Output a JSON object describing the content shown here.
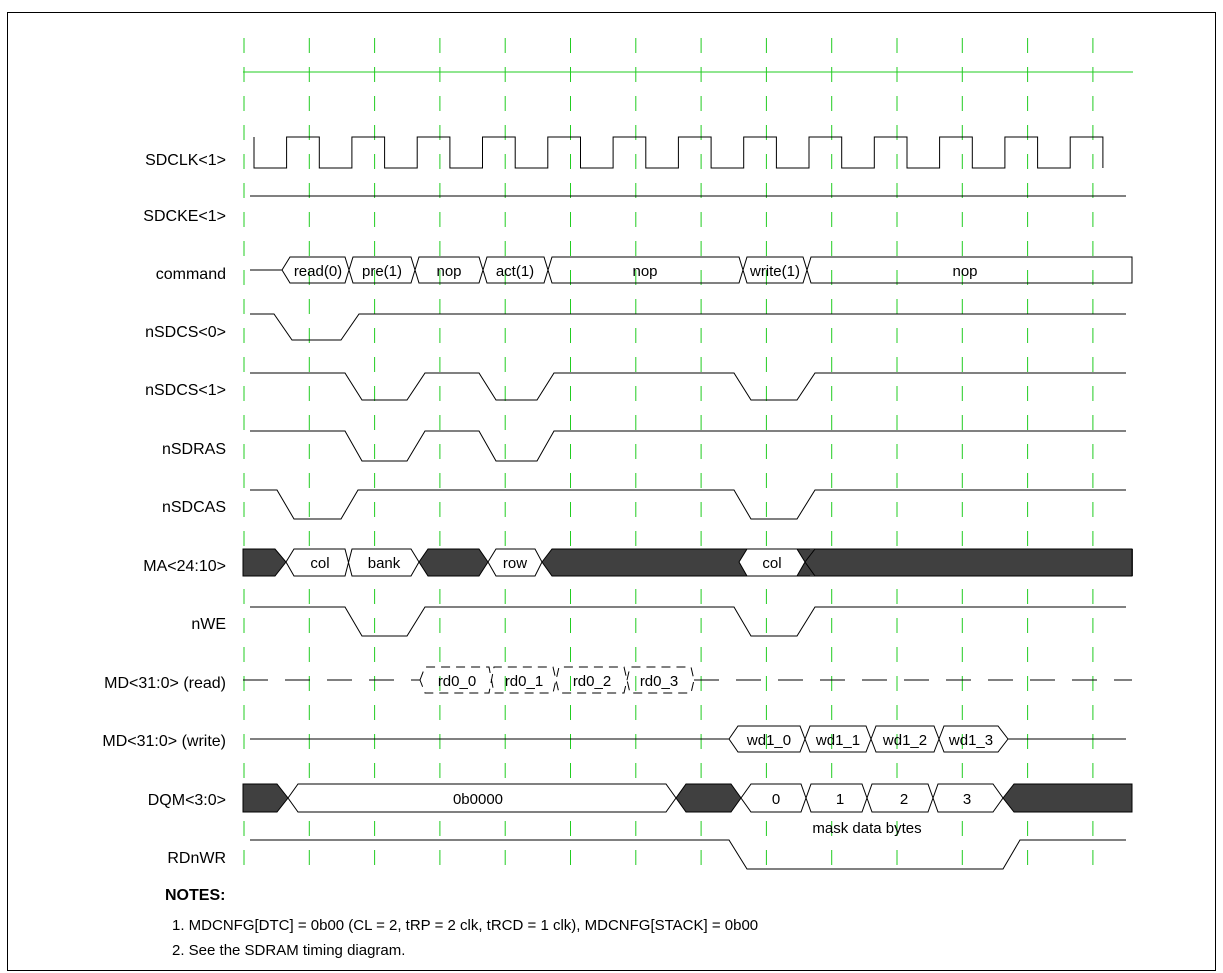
{
  "signals": [
    {
      "id": "sdclk",
      "label": "SDCLK<1>"
    },
    {
      "id": "sdcke",
      "label": "SDCKE<1>"
    },
    {
      "id": "command",
      "label": "command",
      "segments": [
        "read(0)",
        "pre(1)",
        "nop",
        "act(1)",
        "nop",
        "write(1)",
        "nop"
      ]
    },
    {
      "id": "nsdcs0",
      "label": "nSDCS<0>"
    },
    {
      "id": "nsdcs1",
      "label": "nSDCS<1>"
    },
    {
      "id": "nsdras",
      "label": "nSDRAS"
    },
    {
      "id": "nsdcas",
      "label": "nSDCAS"
    },
    {
      "id": "ma",
      "label": "MA<24:10>",
      "segments": [
        "col",
        "bank",
        "row",
        "col"
      ]
    },
    {
      "id": "nwe",
      "label": "nWE"
    },
    {
      "id": "mdread",
      "label": "MD<31:0> (read)",
      "segments": [
        "rd0_0",
        "rd0_1",
        "rd0_2",
        "rd0_3"
      ]
    },
    {
      "id": "mdwrite",
      "label": "MD<31:0> (write)",
      "segments": [
        "wd1_0",
        "wd1_1",
        "wd1_2",
        "wd1_3"
      ]
    },
    {
      "id": "dqm",
      "label": "DQM<3:0>",
      "segments": [
        "0b0000",
        "0",
        "1",
        "2",
        "3"
      ],
      "annotation": "mask data bytes"
    },
    {
      "id": "rdnwr",
      "label": "RDnWR"
    }
  ],
  "notes": {
    "title": "NOTES:",
    "lines": [
      "1. MDCNFG[DTC] = 0b00 (CL = 2, tRP = 2 clk, tRCD = 1 clk), MDCNFG[STACK] = 0b00",
      "2. See the SDRAM timing diagram."
    ]
  },
  "colors": {
    "guide": "#22cc22",
    "trace": "#000000",
    "bus_fill_dark": "#404040"
  }
}
